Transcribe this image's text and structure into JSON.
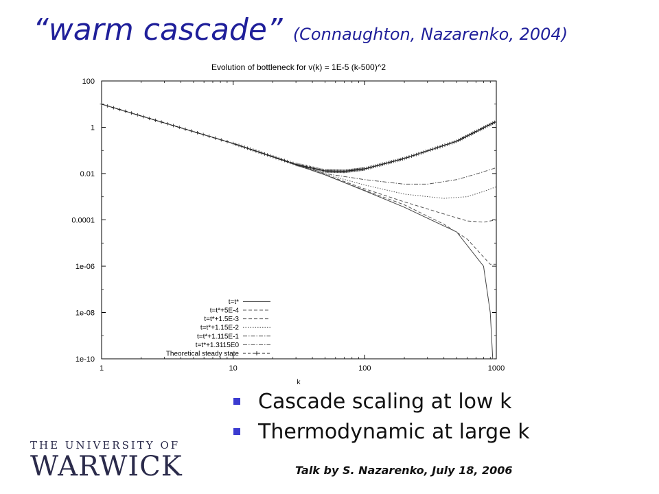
{
  "title": {
    "main": "“warm cascade”",
    "sub": "(Connaughton, Nazarenko, 2004)"
  },
  "bullets": [
    "Cascade scaling at low k",
    "Thermodynamic at large k"
  ],
  "logo": {
    "line1": "THE UNIVERSITY OF",
    "line2": "WARWICK"
  },
  "footer": "Talk by S. Nazarenko, July 18, 2006",
  "colors": {
    "title": "#1f1f9a",
    "bullet": "#3b3bd0",
    "logo": "#2a2a4a"
  },
  "chart_data": {
    "type": "line",
    "title": "Evolution of bottleneck for v(k) = 1E-5 (k-500)^2",
    "xlabel": "k",
    "ylabel": "",
    "xscale": "log",
    "yscale": "log",
    "xlim": [
      1,
      1000
    ],
    "ylim": [
      1e-10,
      100
    ],
    "x_ticks": [
      1,
      10,
      100,
      1000
    ],
    "x_tick_labels": [
      "1",
      "10",
      "100",
      "1000"
    ],
    "y_ticks": [
      1e-10,
      1e-08,
      1e-06,
      0.0001,
      0.01,
      1,
      100
    ],
    "y_tick_labels": [
      "1e-10",
      "1e-08",
      "1e-06",
      "0.0001",
      "0.01",
      "1",
      "100"
    ],
    "legend_position": "bottom-left",
    "series": [
      {
        "name": "t=t*",
        "style": "solid",
        "x": [
          1,
          10,
          50,
          100,
          200,
          500,
          800,
          900,
          940,
          960
        ],
        "y": [
          10,
          0.2,
          0.0088,
          0.0018,
          0.00035,
          3e-05,
          1e-06,
          1e-08,
          1e-10,
          1e-10
        ]
      },
      {
        "name": "t=t*+5E-4",
        "style": "dashed",
        "x": [
          1,
          10,
          50,
          100,
          200,
          400,
          600,
          800,
          900,
          1000
        ],
        "y": [
          10,
          0.2,
          0.0088,
          0.0019,
          0.00045,
          6.5e-05,
          1.5e-05,
          2.5e-06,
          1.2e-06,
          1.2e-06
        ]
      },
      {
        "name": "t=t*+1.5E-3",
        "style": "dashed",
        "x": [
          1,
          10,
          50,
          100,
          200,
          400,
          600,
          800,
          1000
        ],
        "y": [
          10,
          0.2,
          0.009,
          0.0022,
          0.0006,
          0.00018,
          9e-05,
          8e-05,
          0.0001
        ]
      },
      {
        "name": "t=t*+1.15E-2",
        "style": "dotted",
        "x": [
          1,
          10,
          50,
          100,
          200,
          400,
          600,
          800,
          1000
        ],
        "y": [
          10,
          0.2,
          0.0095,
          0.0032,
          0.0013,
          0.00085,
          0.001,
          0.0017,
          0.0027
        ]
      },
      {
        "name": "t=t*+1.115E-1",
        "style": "dashdot",
        "x": [
          1,
          10,
          50,
          100,
          200,
          300,
          500,
          700,
          1000
        ],
        "y": [
          10,
          0.2,
          0.01,
          0.0055,
          0.0035,
          0.0035,
          0.0055,
          0.0095,
          0.018
        ]
      },
      {
        "name": "t=t*+1.3115E0",
        "style": "dashdot",
        "x": [
          1,
          10,
          30,
          50,
          70,
          100,
          200,
          500,
          1000
        ],
        "y": [
          10,
          0.2,
          0.025,
          0.013,
          0.0125,
          0.016,
          0.045,
          0.25,
          1.8
        ]
      },
      {
        "name": "Theoretical steady state",
        "style": "dashed-plus",
        "x": [
          1,
          10,
          30,
          50,
          70,
          100,
          200,
          500,
          1000
        ],
        "y": [
          10,
          0.2,
          0.025,
          0.013,
          0.0125,
          0.016,
          0.045,
          0.25,
          1.8
        ]
      }
    ]
  }
}
